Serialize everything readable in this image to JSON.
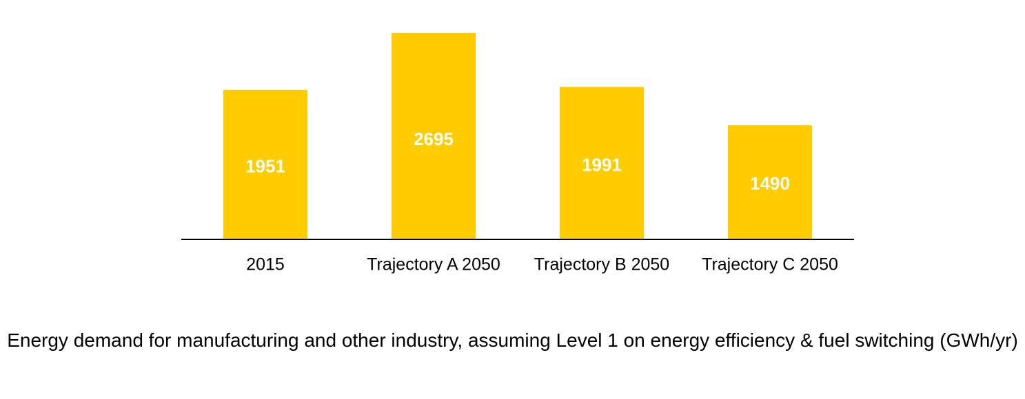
{
  "chart_data": {
    "type": "bar",
    "categories": [
      "2015",
      "Trajectory A 2050",
      "Trajectory B 2050",
      "Trajectory C 2050"
    ],
    "values": [
      1951,
      2695,
      1991,
      1490
    ],
    "data_labels": [
      "1951",
      "2695",
      "1991",
      "1490"
    ],
    "title": "",
    "xlabel": "",
    "ylabel": "",
    "ylim": [
      0,
      2695
    ],
    "grid": false,
    "legend": "none",
    "bar_color": "#FFCC00",
    "label_color": "#FFFFFF"
  },
  "caption": "Energy demand for manufacturing and other industry, assuming Level 1 on energy efficiency & fuel switching (GWh/yr)"
}
